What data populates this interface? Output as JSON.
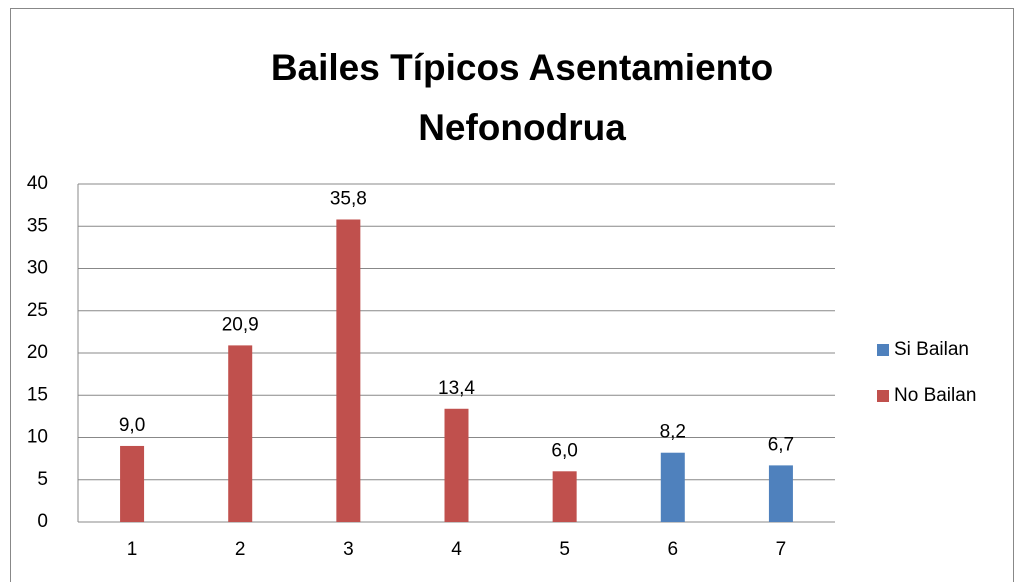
{
  "chart_data": {
    "type": "bar",
    "title": "Bailes Típicos Asentamiento Nefonodrua",
    "categories": [
      "1",
      "2",
      "3",
      "4",
      "5",
      "6",
      "7"
    ],
    "series": [
      {
        "name": "Si Bailan",
        "color": "#4f81bd",
        "values": [
          null,
          null,
          null,
          null,
          null,
          8.2,
          6.7
        ],
        "value_labels": [
          null,
          null,
          null,
          null,
          null,
          "8,2",
          "6,7"
        ]
      },
      {
        "name": "No Bailan",
        "color": "#c0504d",
        "values": [
          9.0,
          20.9,
          35.8,
          13.4,
          6.0,
          null,
          null
        ],
        "value_labels": [
          "9,0",
          "20,9",
          "35,8",
          "13,4",
          "6,0",
          null,
          null
        ]
      }
    ],
    "ylim": [
      0,
      40
    ],
    "yticks": [
      0,
      5,
      10,
      15,
      20,
      25,
      30,
      35,
      40
    ],
    "grid": true,
    "legend": "right"
  }
}
